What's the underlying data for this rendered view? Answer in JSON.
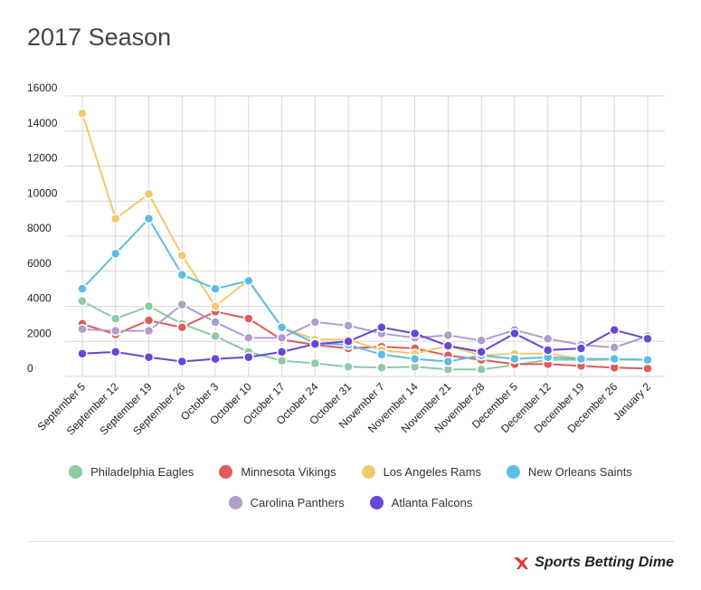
{
  "title": "2017 Season",
  "chart_data": {
    "type": "line",
    "title": "2017 Season",
    "xlabel": "",
    "ylabel": "",
    "ylim": [
      0,
      16000
    ],
    "yticks": [
      0,
      2000,
      4000,
      6000,
      8000,
      10000,
      12000,
      14000,
      16000
    ],
    "grid": "vertical and horizontal",
    "legend_position": "bottom",
    "categories": [
      "September 5",
      "September 12",
      "September 19",
      "September 26",
      "October 3",
      "October 10",
      "October 17",
      "October 24",
      "October 31",
      "November 7",
      "November 14",
      "November 21",
      "November 28",
      "December 5",
      "December 12",
      "December 19",
      "December 26",
      "January 2"
    ],
    "series": [
      {
        "name": "Philadelphia Eagles",
        "color": "#8ecaa4",
        "values": [
          4300,
          3300,
          4000,
          3000,
          2300,
          1400,
          900,
          750,
          550,
          500,
          550,
          400,
          400,
          650,
          950,
          950,
          950,
          950
        ]
      },
      {
        "name": "Minnesota Vikings",
        "color": "#df5a5a",
        "values": [
          3000,
          2400,
          3200,
          2800,
          3700,
          3300,
          2100,
          1800,
          1600,
          1700,
          1600,
          1200,
          950,
          700,
          700,
          600,
          500,
          450
        ]
      },
      {
        "name": "Los Angeles Rams",
        "color": "#f2c96a",
        "values": [
          15000,
          9000,
          10400,
          6900,
          4000,
          5500,
          2800,
          2100,
          2100,
          1500,
          1300,
          1750,
          1200,
          1300,
          1300,
          1000,
          950,
          950
        ]
      },
      {
        "name": "New Orleans Saints",
        "color": "#5bbde6",
        "values": [
          5000,
          7000,
          9000,
          5800,
          5000,
          5450,
          2800,
          1900,
          1800,
          1250,
          1000,
          850,
          1200,
          1000,
          1100,
          1000,
          1000,
          950
        ]
      },
      {
        "name": "Carolina Panthers",
        "color": "#b29ccb",
        "values": [
          2700,
          2600,
          2600,
          4100,
          3100,
          2200,
          2200,
          3100,
          2900,
          2450,
          2200,
          2350,
          2050,
          2650,
          2150,
          1800,
          1650,
          2300
        ]
      },
      {
        "name": "Atlanta Falcons",
        "color": "#6747d6",
        "values": [
          1300,
          1400,
          1100,
          850,
          1000,
          1100,
          1400,
          1850,
          2000,
          2800,
          2450,
          1750,
          1400,
          2450,
          1500,
          1600,
          2650,
          2150
        ]
      }
    ]
  },
  "legend_rows": [
    [
      {
        "label": "Philadelphia Eagles",
        "color": "#8ecaa4"
      },
      {
        "label": "Minnesota Vikings",
        "color": "#df5a5a"
      },
      {
        "label": "Los Angeles Rams",
        "color": "#f2c96a"
      },
      {
        "label": "New Orleans Saints",
        "color": "#5bbde6"
      }
    ],
    [
      {
        "label": "Carolina Panthers",
        "color": "#b29ccb"
      },
      {
        "label": "Atlanta Falcons",
        "color": "#6747d6"
      }
    ]
  ],
  "footer": {
    "logo_text": "Sports Betting Dime",
    "logo_icon": "sbd-logo-icon",
    "logo_color": "#e03c3c"
  }
}
